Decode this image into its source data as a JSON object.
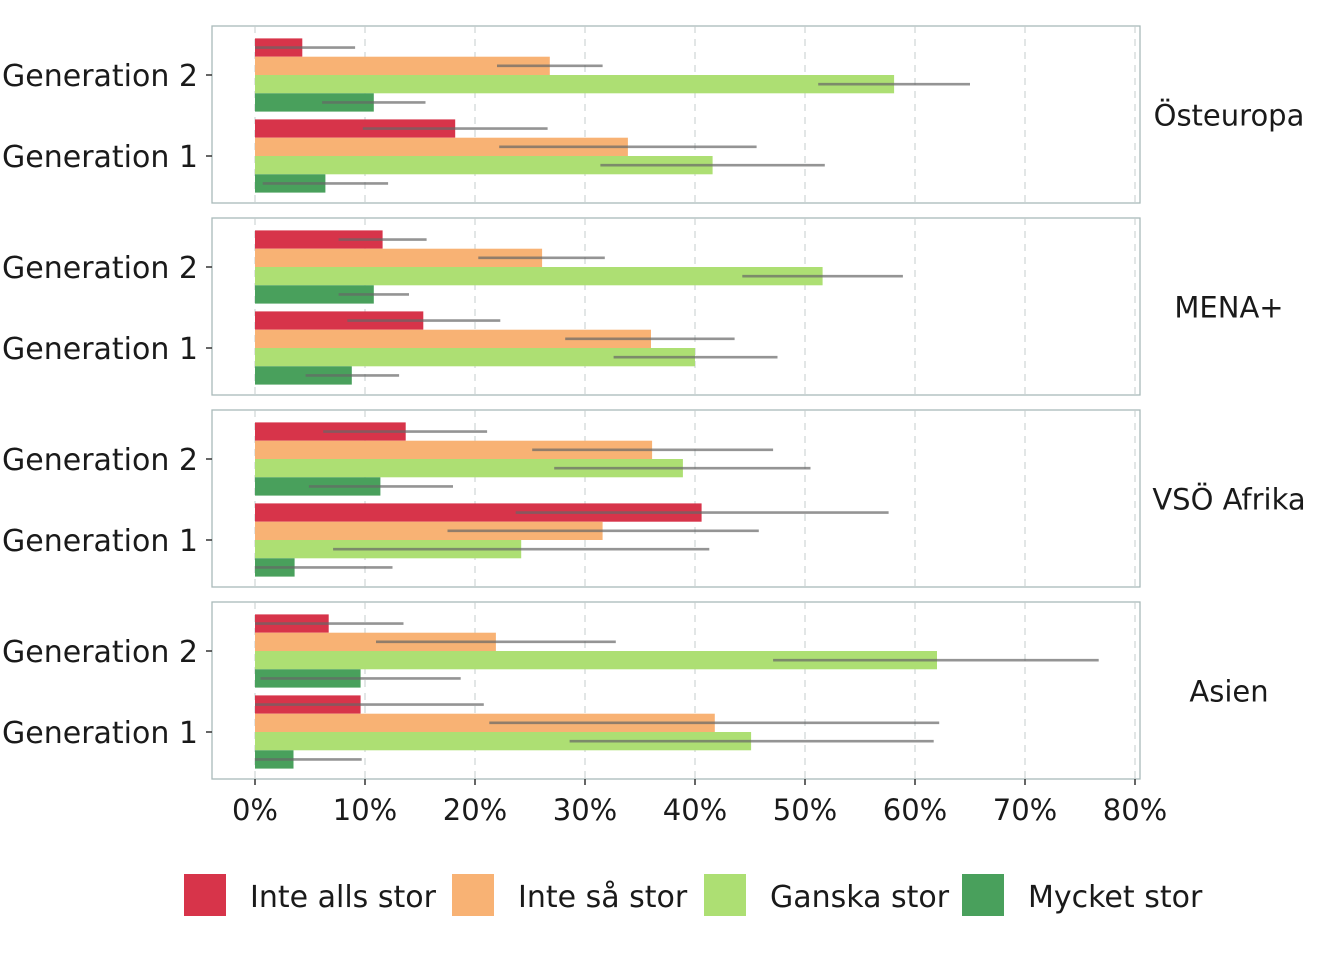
{
  "chart_data": {
    "type": "bar",
    "orientation": "horizontal",
    "facet_by": "region",
    "categories": [
      "Generation 2",
      "Generation 1"
    ],
    "x_ticks": [
      "0%",
      "10%",
      "20%",
      "30%",
      "40%",
      "50%",
      "60%",
      "70%",
      "80%"
    ],
    "xlim": [
      0,
      80
    ],
    "grid": "vertical dashed",
    "legend_position": "bottom",
    "legend": [
      {
        "name": "Inte alls stor",
        "color": "#d7344a"
      },
      {
        "name": "Inte så stor",
        "color": "#f8b274"
      },
      {
        "name": "Ganska stor",
        "color": "#addf73"
      },
      {
        "name": "Mycket stor",
        "color": "#49a05c"
      }
    ],
    "panels": [
      {
        "region": "Östeuropa",
        "groups": [
          {
            "category": "Generation 2",
            "values": [
              4.3,
              26.8,
              58.1,
              10.8
            ],
            "ci": [
              [
                0,
                9.1
              ],
              [
                22.0,
                31.6
              ],
              [
                51.2,
                65.0
              ],
              [
                6.1,
                15.5
              ]
            ]
          },
          {
            "category": "Generation 1",
            "values": [
              18.2,
              33.9,
              41.6,
              6.4
            ],
            "ci": [
              [
                9.8,
                26.6
              ],
              [
                22.2,
                45.6
              ],
              [
                31.4,
                51.8
              ],
              [
                0.7,
                12.1
              ]
            ]
          }
        ]
      },
      {
        "region": "MENA+",
        "groups": [
          {
            "category": "Generation 2",
            "values": [
              11.6,
              26.1,
              51.6,
              10.8
            ],
            "ci": [
              [
                7.6,
                15.6
              ],
              [
                20.3,
                31.8
              ],
              [
                44.3,
                58.9
              ],
              [
                7.6,
                14.0
              ]
            ]
          },
          {
            "category": "Generation 1",
            "values": [
              15.3,
              36.0,
              40.0,
              8.8
            ],
            "ci": [
              [
                8.4,
                22.3
              ],
              [
                28.2,
                43.6
              ],
              [
                32.6,
                47.5
              ],
              [
                4.6,
                13.1
              ]
            ]
          }
        ]
      },
      {
        "region": "VSÖ Afrika",
        "groups": [
          {
            "category": "Generation 2",
            "values": [
              13.7,
              36.1,
              38.9,
              11.4
            ],
            "ci": [
              [
                6.2,
                21.1
              ],
              [
                25.2,
                47.1
              ],
              [
                27.2,
                50.5
              ],
              [
                4.9,
                18.0
              ]
            ]
          },
          {
            "category": "Generation 1",
            "values": [
              40.6,
              31.6,
              24.2,
              3.6
            ],
            "ci": [
              [
                23.7,
                57.6
              ],
              [
                17.5,
                45.8
              ],
              [
                7.1,
                41.3
              ],
              [
                0,
                12.5
              ]
            ]
          }
        ]
      },
      {
        "region": "Asien",
        "groups": [
          {
            "category": "Generation 2",
            "values": [
              6.7,
              21.9,
              62.0,
              9.6
            ],
            "ci": [
              [
                0,
                13.5
              ],
              [
                11.0,
                32.8
              ],
              [
                47.1,
                76.7
              ],
              [
                0.5,
                18.7
              ]
            ]
          },
          {
            "category": "Generation 1",
            "values": [
              9.6,
              41.8,
              45.1,
              3.5
            ],
            "ci": [
              [
                0,
                20.8
              ],
              [
                21.3,
                62.2
              ],
              [
                28.6,
                61.7
              ],
              [
                0,
                9.7
              ]
            ]
          }
        ]
      }
    ]
  }
}
